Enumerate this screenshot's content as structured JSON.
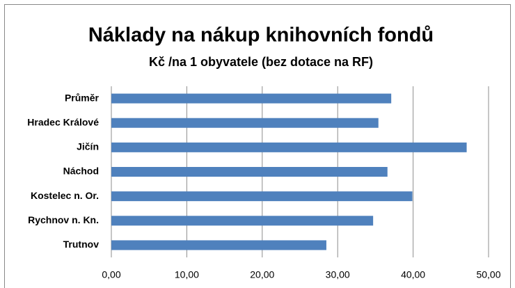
{
  "chart_data": {
    "type": "bar",
    "orientation": "horizontal",
    "title": "Náklady na nákup knihovních fondů",
    "subtitle": "Kč /na 1 obyvatele (bez dotace na RF)",
    "categories": [
      "Průměr",
      "Hradec Králové",
      "Jičín",
      "Náchod",
      "Kostelec n. Or.",
      "Rychnov n. Kn.",
      "Trutnov"
    ],
    "values": [
      37.1,
      35.4,
      47.1,
      36.6,
      39.9,
      34.7,
      28.5
    ],
    "color": "#4f81bd",
    "xlim": [
      0,
      50
    ],
    "xticks": [
      {
        "value": 0,
        "label": "0,00"
      },
      {
        "value": 10,
        "label": "10,00"
      },
      {
        "value": 20,
        "label": "20,00"
      },
      {
        "value": 30,
        "label": "30,00"
      },
      {
        "value": 40,
        "label": "40,00"
      },
      {
        "value": 50,
        "label": "50,00"
      }
    ],
    "grid": true
  }
}
